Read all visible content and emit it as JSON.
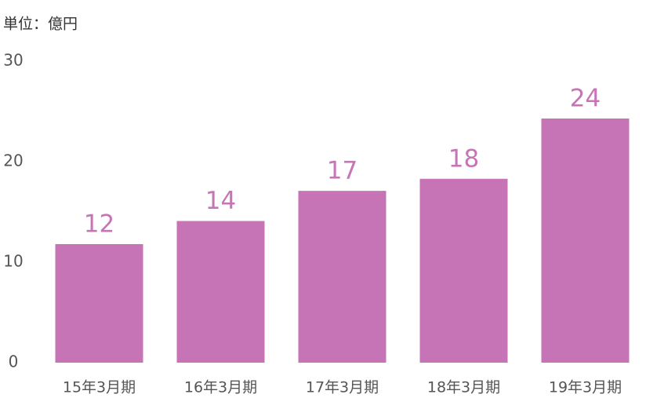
{
  "chart_data": {
    "type": "bar",
    "y_axis_label": "単位：億円",
    "categories": [
      "15年3月期",
      "16年3月期",
      "17年3月期",
      "18年3月期",
      "19年3月期"
    ],
    "values": [
      11.8,
      14.1,
      17.1,
      18.3,
      24.3
    ],
    "value_labels": [
      "12",
      "14",
      "17",
      "18",
      "24"
    ],
    "color": "#c774b7",
    "ylim": [
      0,
      30
    ],
    "yticks": [
      0,
      10,
      20,
      30
    ],
    "grid": false
  }
}
